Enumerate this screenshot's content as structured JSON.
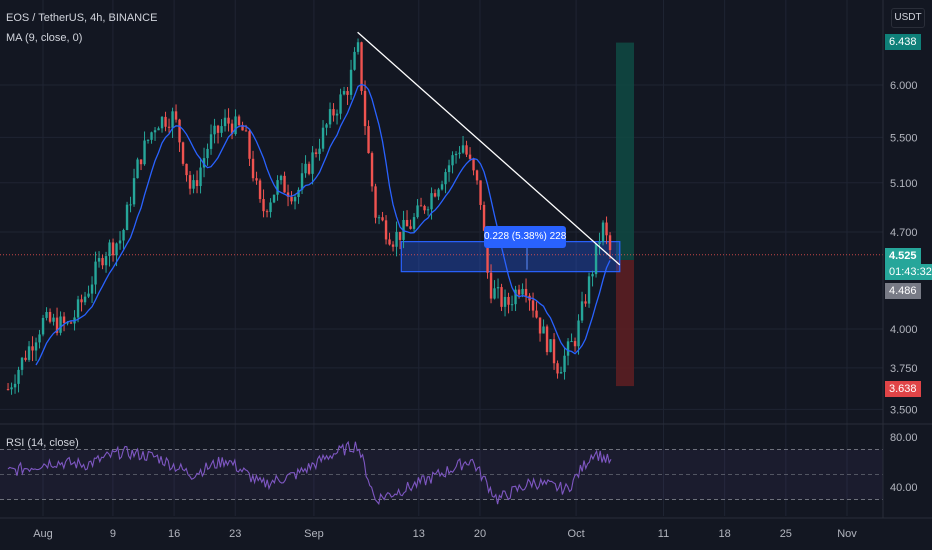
{
  "header": {
    "symbol": "EOS / TetherUS, 4h, BINANCE",
    "ma_label": "MA (9, close, 0)",
    "rsi_label": "RSI (14, close)"
  },
  "currency": "USDT",
  "measure_label": "0.228 (5.38%) 228",
  "badges": {
    "target": "6.438",
    "price": "4.525",
    "countdown": "01:43:32",
    "entry": "4.486",
    "stop": "3.638"
  },
  "colors": {
    "up": "#26a69a",
    "down": "#ef5350",
    "ma": "#2962ff",
    "rsi": "#7e57c2",
    "trendline": "#ffffff",
    "zone": "#2962ff",
    "target_bg": "#0f4a43",
    "stop_bg": "#5b1e22"
  },
  "chart_data": [
    {
      "type": "candlestick",
      "title": "EOS / TetherUS, 4h, BINANCE",
      "price_axis": {
        "scale": "log",
        "ticks": [
          "6.000",
          "5.500",
          "5.100",
          "4.700",
          "4.000",
          "3.750",
          "3.500"
        ],
        "range": [
          3.45,
          6.6
        ]
      },
      "time_axis": {
        "ticks": [
          "Aug",
          "9",
          "16",
          "23",
          "Sep",
          "13",
          "20",
          "Oct",
          "11",
          "18",
          "25",
          "Nov"
        ]
      },
      "series": [
        {
          "name": "EOS / TetherUS",
          "approx_close_path": [
            {
              "x": "Jul 28",
              "y": 3.62
            },
            {
              "x": "Aug 1",
              "y": 4.05
            },
            {
              "x": "Aug 4",
              "y": 4.02
            },
            {
              "x": "Aug 6",
              "y": 4.25
            },
            {
              "x": "Aug 8",
              "y": 4.55
            },
            {
              "x": "Aug 10",
              "y": 4.65
            },
            {
              "x": "Aug 12",
              "y": 5.3
            },
            {
              "x": "Aug 14",
              "y": 5.65
            },
            {
              "x": "Aug 16",
              "y": 5.7
            },
            {
              "x": "Aug 18",
              "y": 5.0
            },
            {
              "x": "Aug 20",
              "y": 5.45
            },
            {
              "x": "Aug 22",
              "y": 5.65
            },
            {
              "x": "Aug 24",
              "y": 5.55
            },
            {
              "x": "Aug 26",
              "y": 4.85
            },
            {
              "x": "Aug 28",
              "y": 5.1
            },
            {
              "x": "Aug 30",
              "y": 5.0
            },
            {
              "x": "Sep 1",
              "y": 5.35
            },
            {
              "x": "Sep 3",
              "y": 5.7
            },
            {
              "x": "Sep 5",
              "y": 6.0
            },
            {
              "x": "Sep 6",
              "y": 6.4
            },
            {
              "x": "Sep 7",
              "y": 5.5
            },
            {
              "x": "Sep 8",
              "y": 4.85
            },
            {
              "x": "Sep 10",
              "y": 4.65
            },
            {
              "x": "Sep 12",
              "y": 4.75
            },
            {
              "x": "Sep 14",
              "y": 4.95
            },
            {
              "x": "Sep 16",
              "y": 5.2
            },
            {
              "x": "Sep 18",
              "y": 5.45
            },
            {
              "x": "Sep 20",
              "y": 5.0
            },
            {
              "x": "Sep 21",
              "y": 4.3
            },
            {
              "x": "Sep 23",
              "y": 4.15
            },
            {
              "x": "Sep 25",
              "y": 4.35
            },
            {
              "x": "Sep 27",
              "y": 4.0
            },
            {
              "x": "Sep 29",
              "y": 3.75
            },
            {
              "x": "Oct 1",
              "y": 3.95
            },
            {
              "x": "Oct 3",
              "y": 4.45
            },
            {
              "x": "Oct 4",
              "y": 4.75
            },
            {
              "x": "Oct 5",
              "y": 4.525
            }
          ]
        },
        {
          "name": "MA (9, close, 0)"
        }
      ],
      "annotations": {
        "trendline": [
          {
            "x": "Sep 6",
            "y": 6.55
          },
          {
            "x": "Oct 6",
            "y": 4.45
          }
        ],
        "zone": {
          "from": "Sep 11",
          "to": "Oct 6",
          "low": 4.4,
          "high": 4.625
        },
        "measure": "0.228 (5.38%) 228",
        "long_position": {
          "target": 6.438,
          "entry": 4.486,
          "stop": 3.638
        },
        "last_price": 4.525
      }
    },
    {
      "type": "line",
      "title": "RSI (14, close)",
      "ylim": [
        20,
        90
      ],
      "y_ticks": [
        "80.00",
        "40.00"
      ],
      "bands": [
        70,
        50,
        30
      ],
      "series": [
        {
          "name": "RSI (14, close)",
          "approx_path": [
            {
              "x": "Jul 28",
              "y": 52
            },
            {
              "x": "Aug 2",
              "y": 60
            },
            {
              "x": "Aug 6",
              "y": 58
            },
            {
              "x": "Aug 10",
              "y": 68
            },
            {
              "x": "Aug 14",
              "y": 64
            },
            {
              "x": "Aug 18",
              "y": 50
            },
            {
              "x": "Aug 22",
              "y": 62
            },
            {
              "x": "Aug 26",
              "y": 42
            },
            {
              "x": "Aug 30",
              "y": 50
            },
            {
              "x": "Sep 3",
              "y": 66
            },
            {
              "x": "Sep 6",
              "y": 74
            },
            {
              "x": "Sep 8",
              "y": 30
            },
            {
              "x": "Sep 12",
              "y": 40
            },
            {
              "x": "Sep 16",
              "y": 52
            },
            {
              "x": "Sep 19",
              "y": 62
            },
            {
              "x": "Sep 22",
              "y": 30
            },
            {
              "x": "Sep 26",
              "y": 44
            },
            {
              "x": "Sep 30",
              "y": 38
            },
            {
              "x": "Oct 3",
              "y": 68
            },
            {
              "x": "Oct 5",
              "y": 60
            }
          ]
        }
      ]
    }
  ]
}
